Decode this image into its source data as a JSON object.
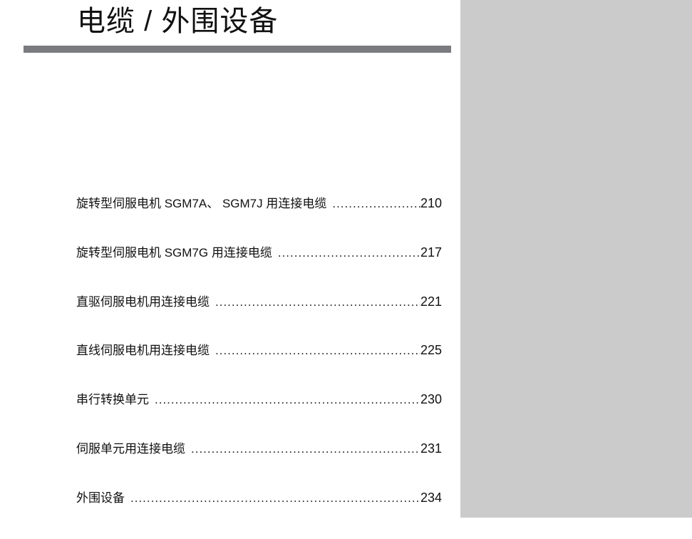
{
  "header": {
    "title": "电缆 / 外围设备"
  },
  "colors": {
    "rule": "#7a7b7e",
    "side_panel": "#cbcbcb"
  },
  "toc": [
    {
      "label": "旋转型伺服电机 SGM7A、 SGM7J 用连接电缆",
      "page": "210"
    },
    {
      "label": "旋转型伺服电机 SGM7G 用连接电缆",
      "page": "217"
    },
    {
      "label": "直驱伺服电机用连接电缆",
      "page": "221"
    },
    {
      "label": "直线伺服电机用连接电缆",
      "page": "225"
    },
    {
      "label": "串行转换单元",
      "page": "230"
    },
    {
      "label": "伺服单元用连接电缆",
      "page": "231"
    },
    {
      "label": "外围设备",
      "page": "234"
    }
  ]
}
